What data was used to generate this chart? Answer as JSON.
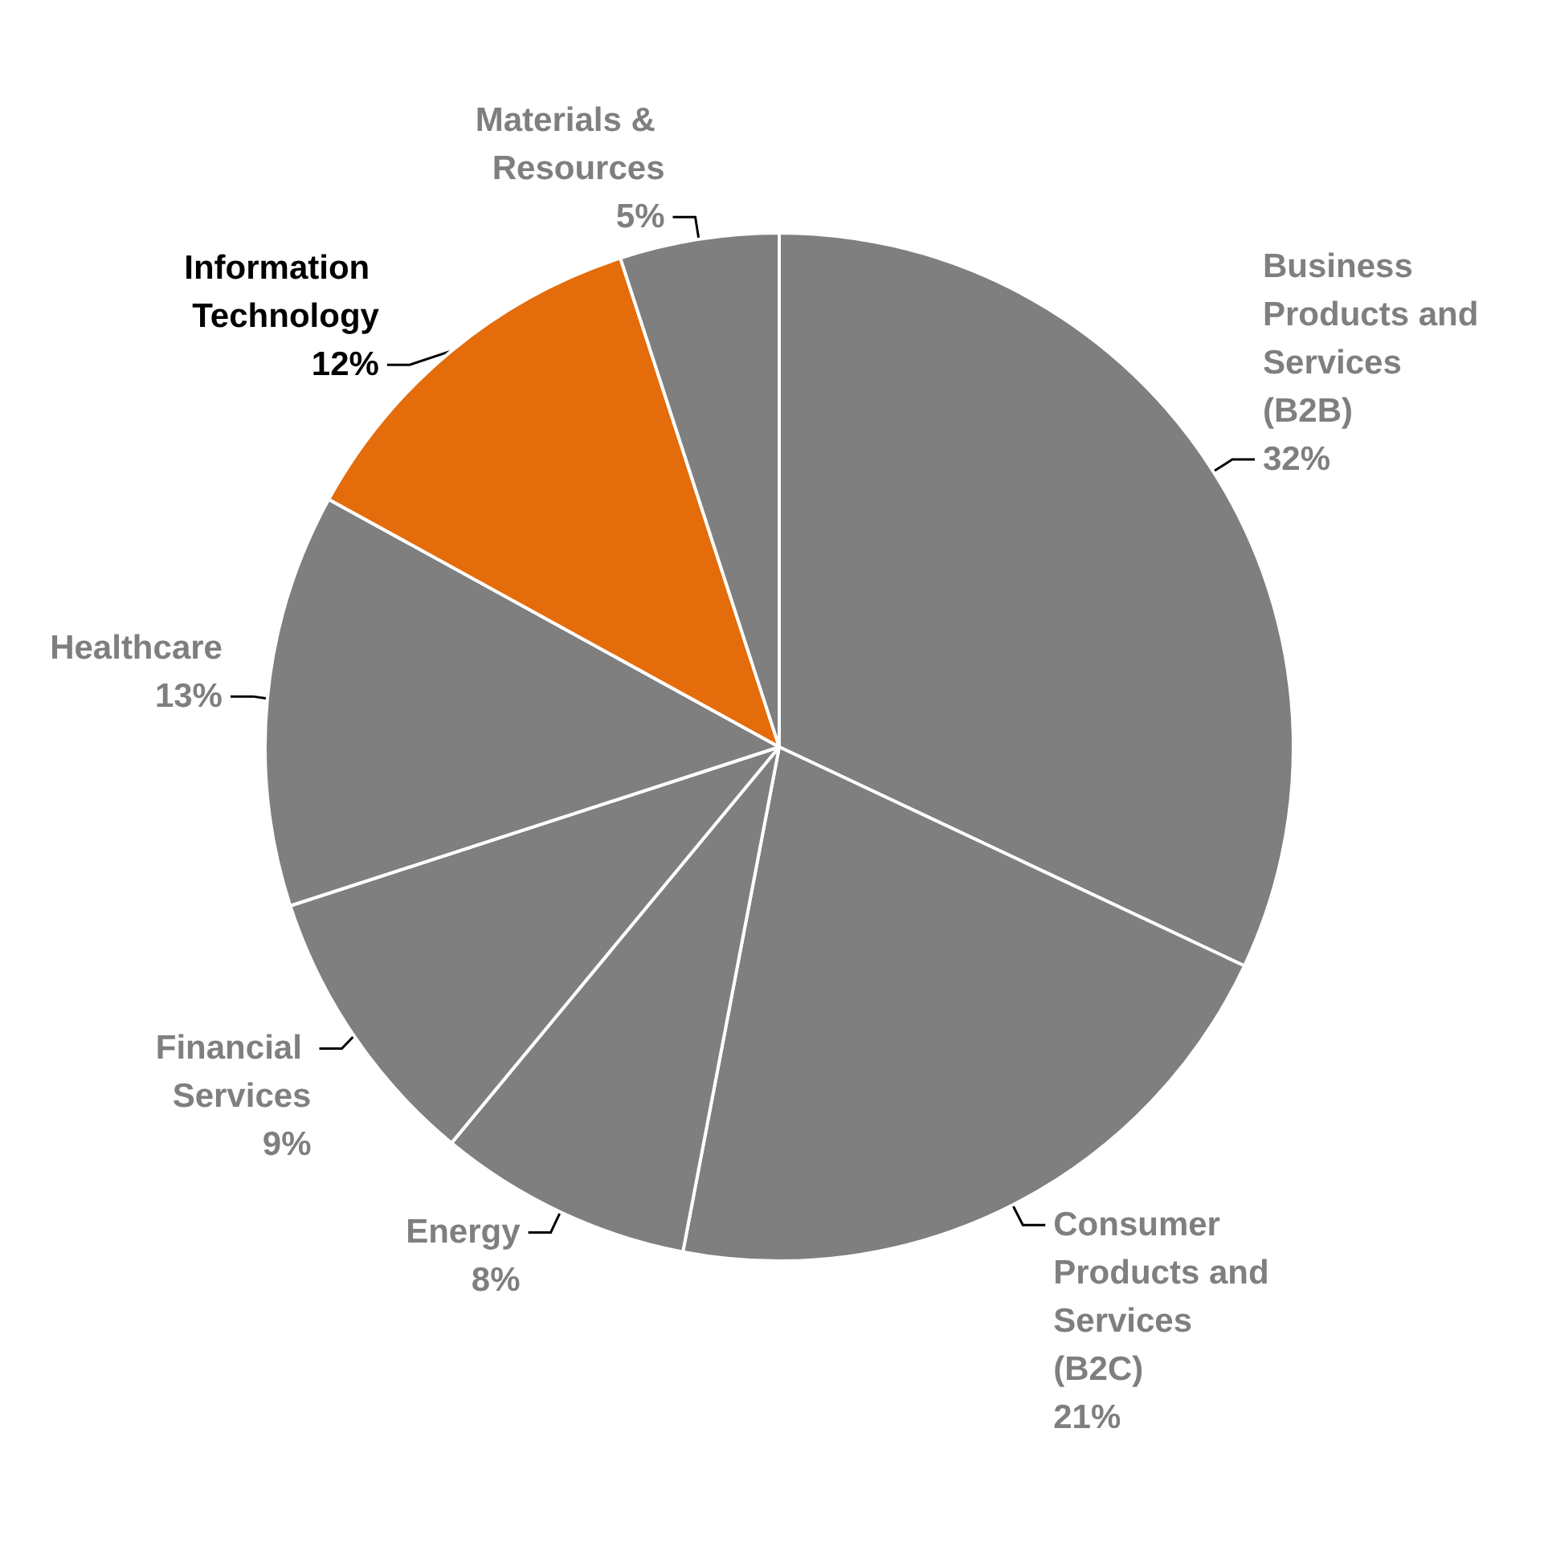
{
  "chart_data": {
    "type": "pie",
    "categories": [
      "Business Products and Services (B2B)",
      "Consumer Products and Services (B2C)",
      "Energy",
      "Financial Services",
      "Healthcare",
      "Information Technology",
      "Materials & Resources"
    ],
    "values": [
      32,
      21,
      8,
      9,
      13,
      12,
      5
    ],
    "colors": [
      "#7f7f7f",
      "#7f7f7f",
      "#7f7f7f",
      "#7f7f7f",
      "#7f7f7f",
      "#e46c0a",
      "#7f7f7f"
    ],
    "value_labels": [
      "32%",
      "21%",
      "8%",
      "9%",
      "13%",
      "12%",
      "5%"
    ],
    "legend": false
  }
}
